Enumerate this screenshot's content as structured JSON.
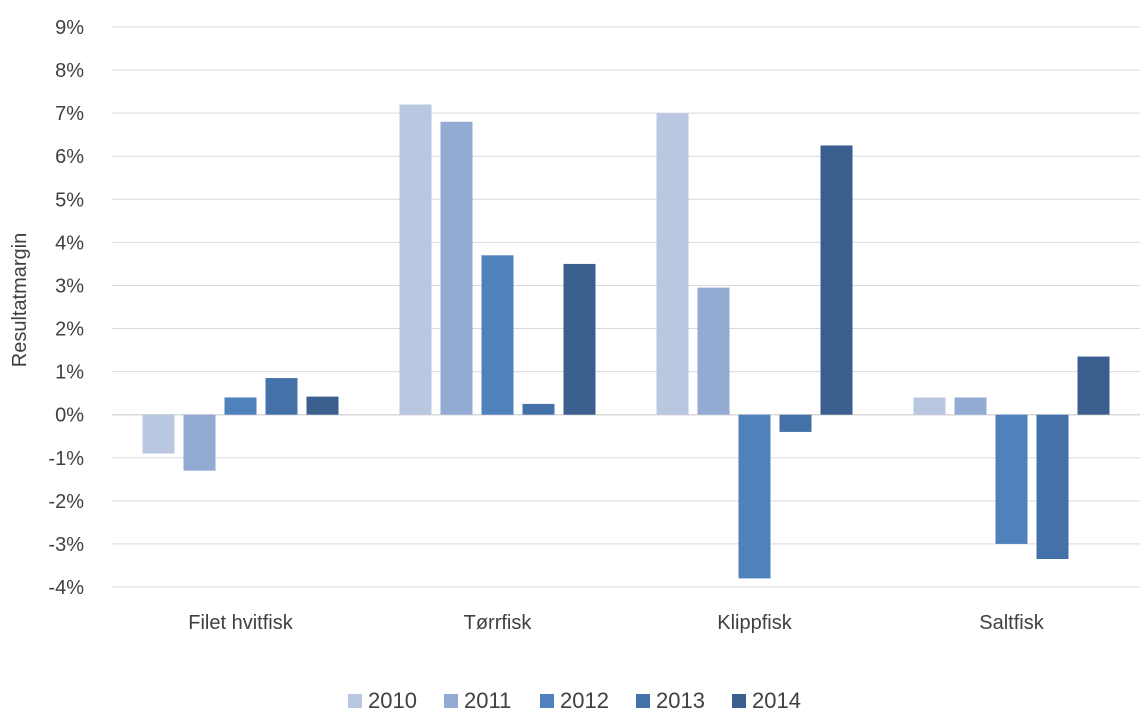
{
  "chart_data": {
    "type": "bar",
    "title": "",
    "xlabel": "",
    "ylabel": "Resultatmargin",
    "categories": [
      "Filet hvitfisk",
      "Tørrfisk",
      "Klippfisk",
      "Saltfisk"
    ],
    "series": [
      {
        "name": "2010",
        "color": "#b9c7e1",
        "values": [
          -0.9,
          7.2,
          7.0,
          0.4
        ]
      },
      {
        "name": "2011",
        "color": "#93aad3",
        "values": [
          -1.3,
          6.8,
          2.95,
          0.4
        ]
      },
      {
        "name": "2012",
        "color": "#4f81bd",
        "values": [
          0.4,
          3.7,
          -3.8,
          -3.0
        ]
      },
      {
        "name": "2013",
        "color": "#4472a8",
        "values": [
          0.85,
          0.25,
          -0.4,
          -3.35
        ]
      },
      {
        "name": "2014",
        "color": "#3a5f8f",
        "values": [
          0.42,
          3.5,
          6.25,
          1.35
        ]
      }
    ],
    "ylim": [
      -4,
      9
    ],
    "yticks": [
      "9%",
      "8%",
      "7%",
      "6%",
      "5%",
      "4%",
      "3%",
      "2%",
      "1%",
      "0%",
      "-1%",
      "-2%",
      "-3%",
      "-4%"
    ],
    "grid": true,
    "legend_position": "bottom"
  }
}
